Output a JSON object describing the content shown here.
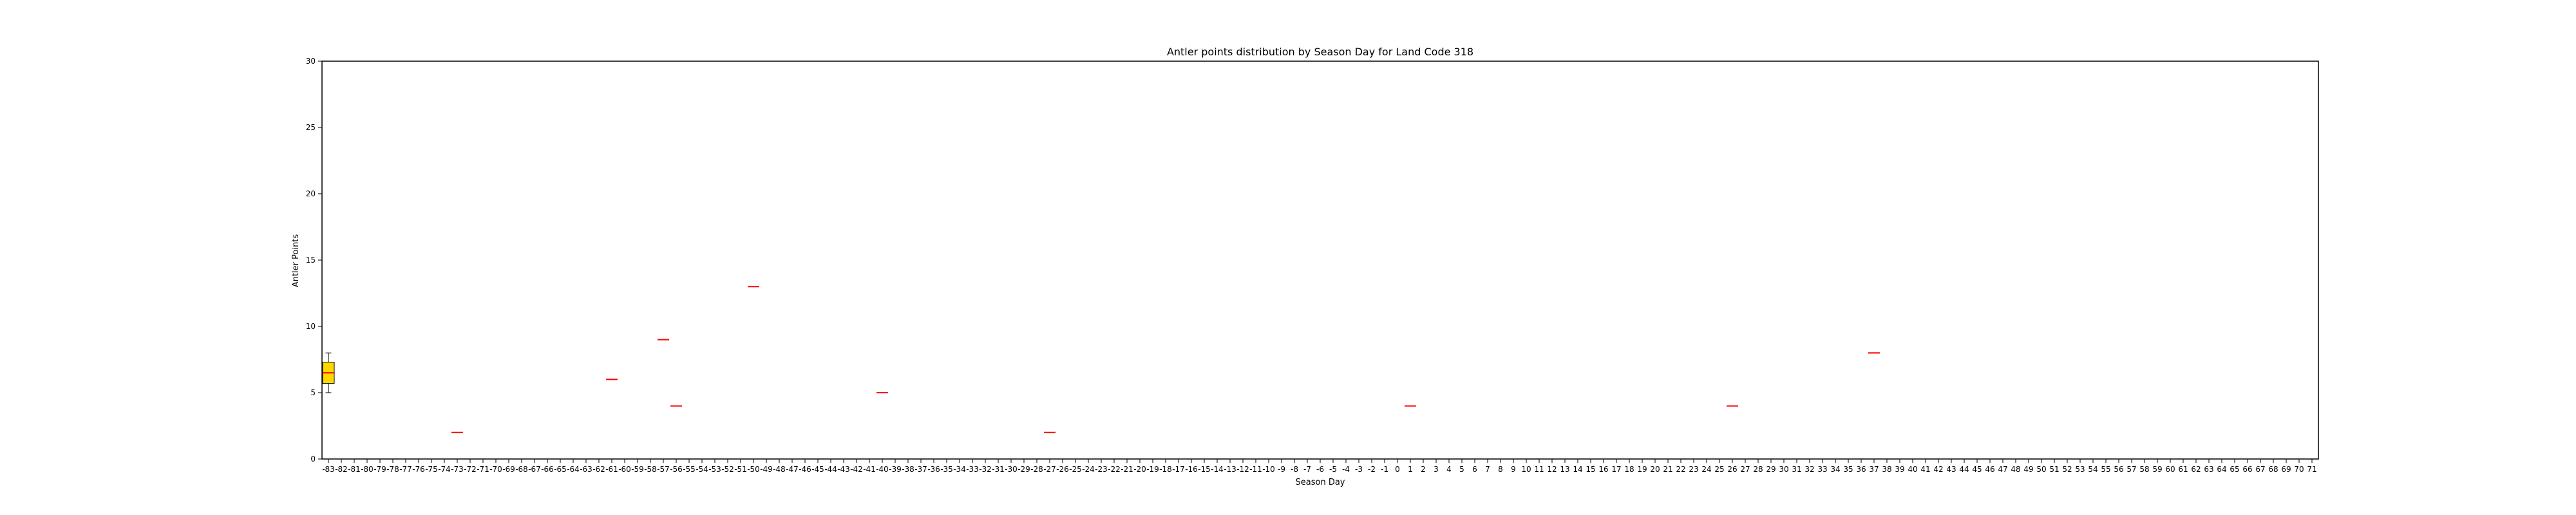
{
  "chart_data": {
    "type": "box",
    "title": "Antler points distribution by Season Day for Land Code 318",
    "xlabel": "Season Day",
    "ylabel": "Antler Points",
    "ylim": [
      0,
      30
    ],
    "yticks": [
      0,
      5,
      10,
      15,
      20,
      25,
      30
    ],
    "categories": [
      -83,
      -82,
      -81,
      -80,
      -79,
      -78,
      -77,
      -76,
      -75,
      -74,
      -73,
      -72,
      -71,
      -70,
      -69,
      -68,
      -67,
      -66,
      -65,
      -64,
      -63,
      -62,
      -61,
      -60,
      -59,
      -58,
      -57,
      -56,
      -55,
      -54,
      -53,
      -52,
      -51,
      -50,
      -49,
      -48,
      -47,
      -46,
      -45,
      -44,
      -43,
      -42,
      -41,
      -40,
      -39,
      -38,
      -37,
      -36,
      -35,
      -34,
      -33,
      -32,
      -31,
      -30,
      -29,
      -28,
      -27,
      -26,
      -25,
      -24,
      -23,
      -22,
      -21,
      -20,
      -19,
      -18,
      -17,
      -16,
      -15,
      -14,
      -13,
      -12,
      -11,
      -10,
      -9,
      -8,
      -7,
      -6,
      -5,
      -4,
      -3,
      -2,
      -1,
      0,
      1,
      2,
      3,
      4,
      5,
      6,
      7,
      8,
      9,
      10,
      11,
      12,
      13,
      14,
      15,
      16,
      17,
      18,
      19,
      20,
      21,
      22,
      23,
      24,
      25,
      26,
      27,
      28,
      29,
      30,
      31,
      32,
      33,
      34,
      35,
      36,
      37,
      38,
      39,
      40,
      41,
      42,
      43,
      44,
      45,
      46,
      47,
      48,
      49,
      50,
      51,
      52,
      53,
      54,
      55,
      56,
      57,
      58,
      59,
      60,
      61,
      62,
      63,
      64,
      65,
      66,
      67,
      68,
      69,
      70,
      71
    ],
    "boxes": [
      {
        "x": -83,
        "whisker_low": 5,
        "q1": 5.7,
        "median": 6.5,
        "q3": 7.3,
        "whisker_high": 8
      }
    ],
    "single_points": [
      {
        "x": -73,
        "y": 2
      },
      {
        "x": -61,
        "y": 6
      },
      {
        "x": -57,
        "y": 9
      },
      {
        "x": -56,
        "y": 4
      },
      {
        "x": -50,
        "y": 13
      },
      {
        "x": -40,
        "y": 5
      },
      {
        "x": -27,
        "y": 2
      },
      {
        "x": 1,
        "y": 4
      },
      {
        "x": 26,
        "y": 4
      },
      {
        "x": 37,
        "y": 8
      }
    ],
    "colors": {
      "box_fill": "#ffd700",
      "median_line": "#ff0000",
      "axis": "#000000"
    },
    "grid": false
  }
}
